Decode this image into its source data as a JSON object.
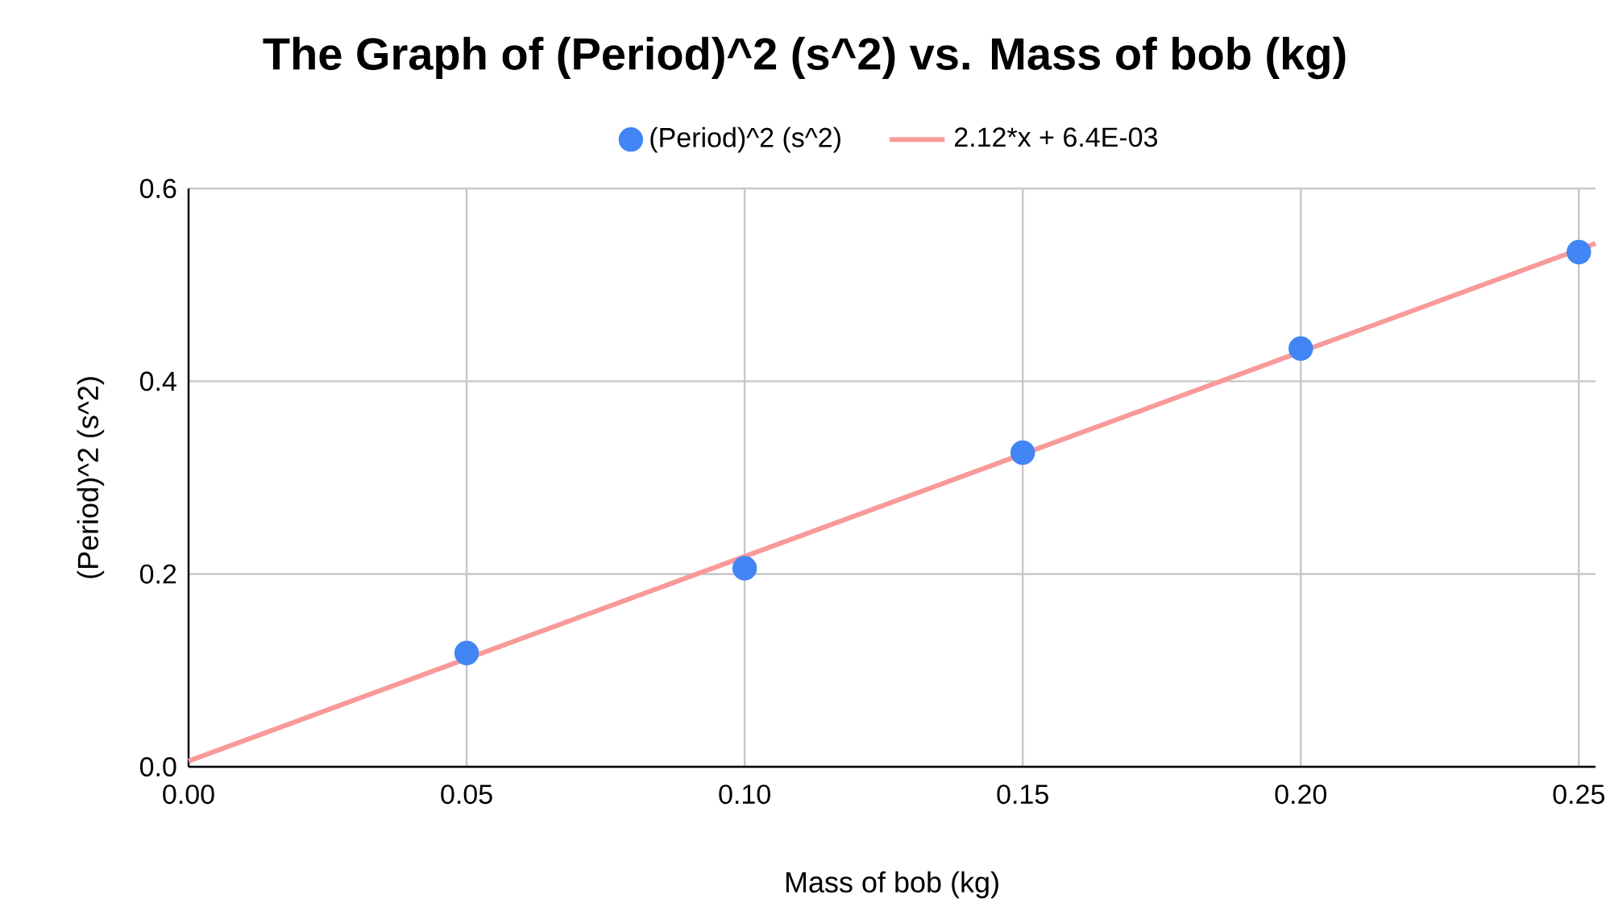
{
  "chart_data": {
    "type": "scatter",
    "title": "The Graph of (Period)^2 (s^2) vs. Mass of bob (kg)",
    "xlabel": "Mass of bob (kg)",
    "ylabel": "(Period)^2 (s^2)",
    "series": [
      {
        "name": "(Period)^2 (s^2)",
        "type": "scatter",
        "color": "#4285f4",
        "marker": "circle",
        "x": [
          0.05,
          0.1,
          0.15,
          0.2,
          0.25
        ],
        "values": [
          0.118,
          0.206,
          0.326,
          0.434,
          0.534
        ]
      },
      {
        "name": "2.12*x + 6.4E-03",
        "type": "line",
        "color": "#f99a9a",
        "marker": "none",
        "line_style": "solid",
        "x": [
          0,
          0.253
        ],
        "values": [
          0.006,
          0.543
        ]
      }
    ],
    "xlim": [
      0,
      0.253
    ],
    "ylim": [
      0,
      0.6
    ],
    "xticks": [
      {
        "value": 0,
        "label": "0.00"
      },
      0.05,
      {
        "value": 0.1,
        "label": "0.10"
      },
      0.15,
      {
        "value": 0.2,
        "label": "0.20"
      },
      0.25
    ],
    "yticks": [
      {
        "value": 0,
        "label": "0.0"
      },
      0.2,
      0.4,
      0.6
    ],
    "grid": true,
    "legend": "top"
  }
}
